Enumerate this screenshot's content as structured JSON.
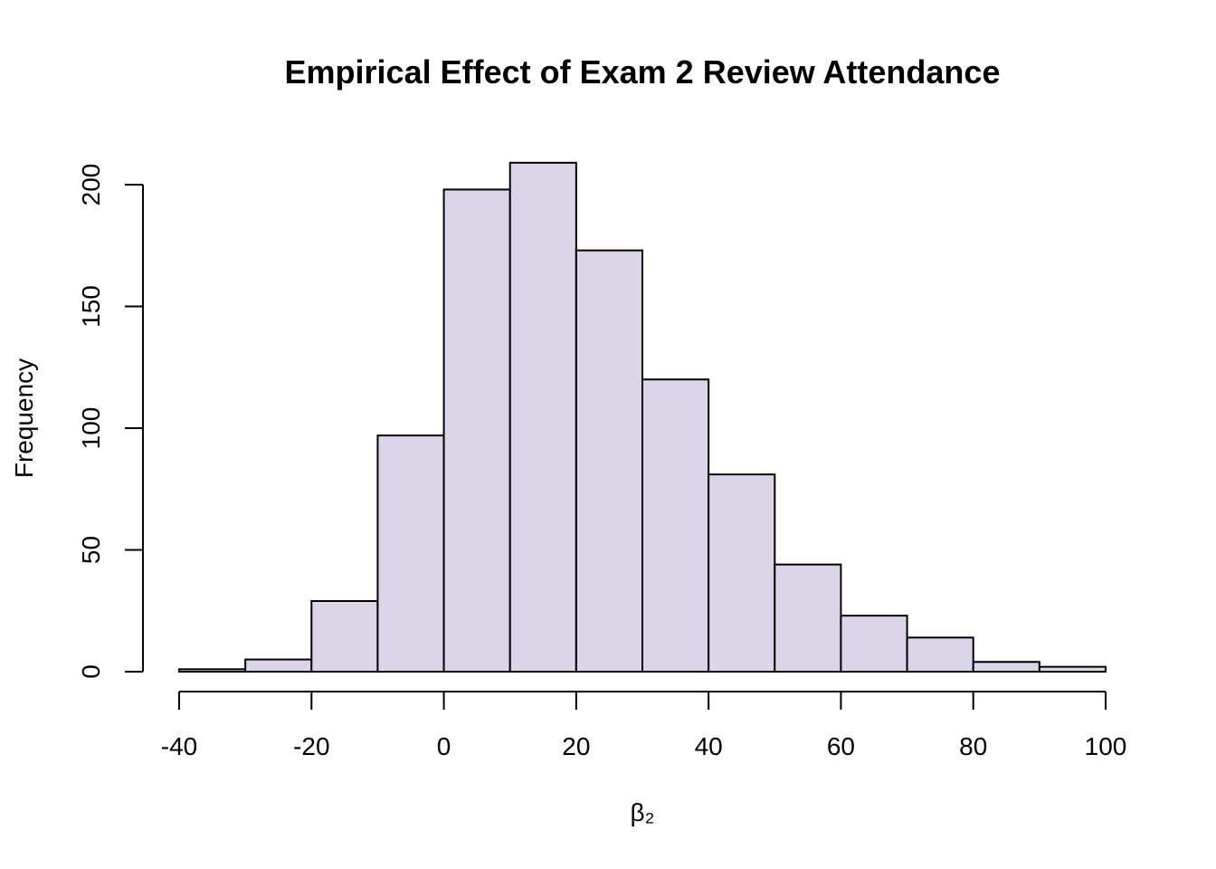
{
  "chart_data": {
    "type": "bar",
    "title": "Empirical Effect of Exam 2 Review Attendance",
    "xlabel": "β₂",
    "ylabel": "Frequency",
    "bar_color": "#dcd4e7",
    "edge_color": "#000000",
    "bins": [
      {
        "x0": -40,
        "x1": -30,
        "count": 1
      },
      {
        "x0": -30,
        "x1": -20,
        "count": 5
      },
      {
        "x0": -20,
        "x1": -10,
        "count": 29
      },
      {
        "x0": -10,
        "x1": 0,
        "count": 97
      },
      {
        "x0": 0,
        "x1": 10,
        "count": 198
      },
      {
        "x0": 10,
        "x1": 20,
        "count": 209
      },
      {
        "x0": 20,
        "x1": 30,
        "count": 173
      },
      {
        "x0": 30,
        "x1": 40,
        "count": 120
      },
      {
        "x0": 40,
        "x1": 50,
        "count": 81
      },
      {
        "x0": 50,
        "x1": 60,
        "count": 44
      },
      {
        "x0": 60,
        "x1": 70,
        "count": 23
      },
      {
        "x0": 70,
        "x1": 80,
        "count": 14
      },
      {
        "x0": 80,
        "x1": 90,
        "count": 4
      },
      {
        "x0": 90,
        "x1": 100,
        "count": 2
      }
    ],
    "xlim": [
      -40,
      100
    ],
    "ylim": [
      0,
      200
    ],
    "xticks": [
      -40,
      -20,
      0,
      20,
      40,
      60,
      80,
      100
    ],
    "yticks": [
      0,
      50,
      100,
      150,
      200
    ],
    "grid": false,
    "legend": "none"
  }
}
